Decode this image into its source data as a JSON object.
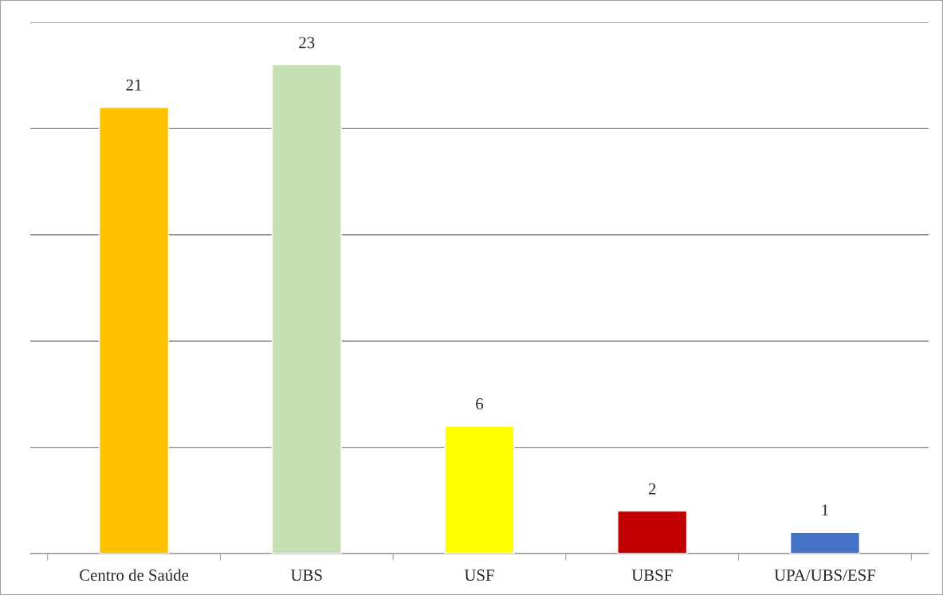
{
  "chart_data": {
    "type": "bar",
    "categories": [
      "Centro de Saúde",
      "UBS",
      "USF",
      "UBSF",
      "UPA/UBS/ESF"
    ],
    "values": [
      21,
      23,
      6,
      2,
      1
    ],
    "colors": [
      "#ffc000",
      "#c5e0b4",
      "#ffff00",
      "#c00000",
      "#4472c4"
    ],
    "ylim": [
      0,
      25
    ],
    "yticks": [
      {
        "value": 0,
        "label": null
      },
      {
        "value": 5,
        "label": null
      },
      {
        "value": 10,
        "label": null
      },
      {
        "value": 15,
        "label": null
      },
      {
        "value": 20,
        "label": null
      },
      {
        "value": 25,
        "label": null
      }
    ],
    "grid": "y",
    "tick_labels": "x",
    "data_labels": true
  }
}
